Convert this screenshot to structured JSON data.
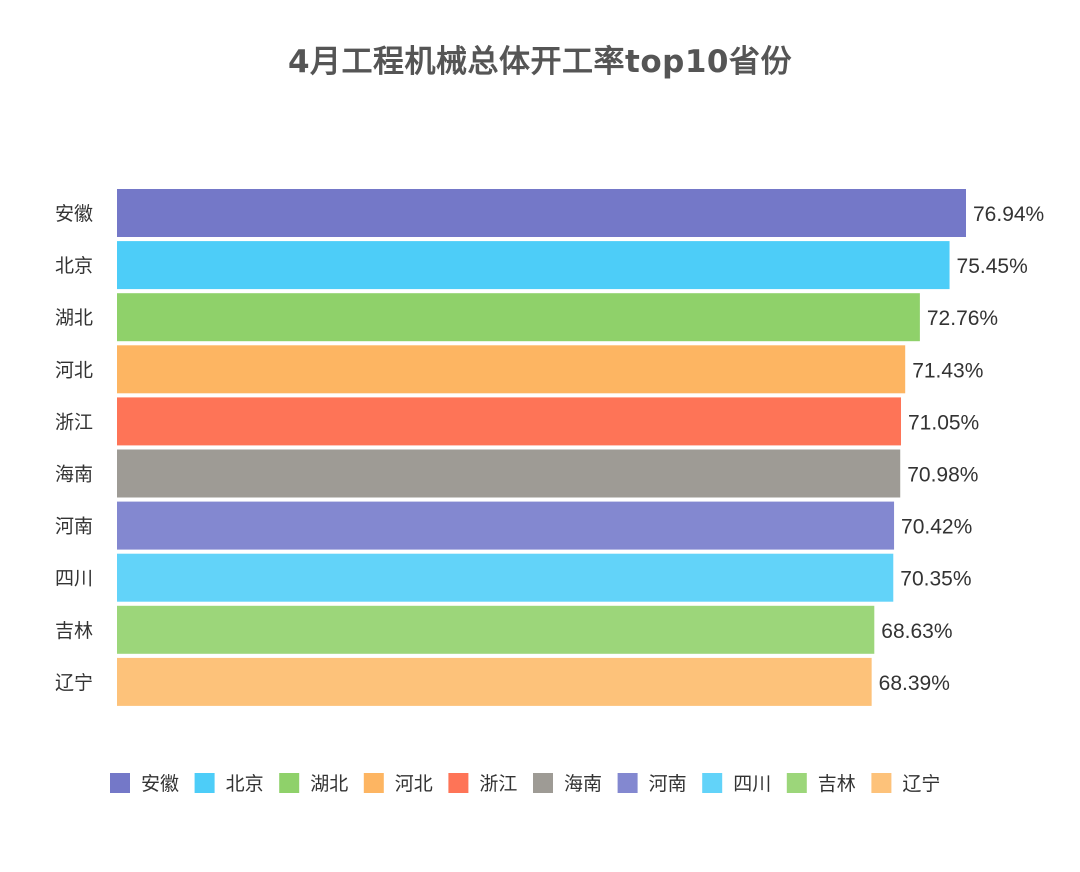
{
  "chart_data": {
    "type": "bar",
    "orientation": "horizontal",
    "title": "4月工程机械总体开工率top10省份",
    "categories": [
      "安徽",
      "北京",
      "湖北",
      "河北",
      "浙江",
      "海南",
      "河南",
      "四川",
      "吉林",
      "辽宁"
    ],
    "values": [
      76.94,
      75.45,
      72.76,
      71.43,
      71.05,
      70.98,
      70.42,
      70.35,
      68.63,
      68.39
    ],
    "value_labels": [
      "76.94%",
      "75.45%",
      "72.76%",
      "71.43%",
      "71.05%",
      "70.98%",
      "70.42%",
      "70.35%",
      "68.63%",
      "68.39%"
    ],
    "colors": [
      "#7478c8",
      "#4dcdf8",
      "#8fd16a",
      "#fdb562",
      "#fe7457",
      "#9e9b95",
      "#8388d0",
      "#62d3f9",
      "#9cd67a",
      "#fdc27a"
    ],
    "legend": {
      "position": "bottom",
      "entries": [
        "安徽",
        "北京",
        "湖北",
        "河北",
        "浙江",
        "海南",
        "河南",
        "四川",
        "吉林",
        "辽宁"
      ]
    },
    "xlim": [
      0,
      76.94
    ],
    "grid": false,
    "xlabel": "",
    "ylabel": ""
  }
}
